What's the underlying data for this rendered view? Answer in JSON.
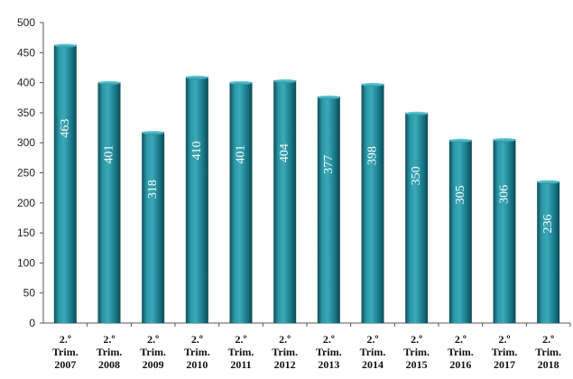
{
  "chart_data": {
    "type": "bar",
    "title": "",
    "xlabel": "",
    "ylabel": "",
    "ylim": [
      0,
      500
    ],
    "yticks": [
      0,
      50,
      100,
      150,
      200,
      250,
      300,
      350,
      400,
      450,
      500
    ],
    "grid": false,
    "legend": "none",
    "bar_color": "#1f8191",
    "categories": [
      [
        "2.º",
        "Trim.",
        "2007"
      ],
      [
        "2.º",
        "Trim.",
        "2008"
      ],
      [
        "2.º",
        "Trim.",
        "2009"
      ],
      [
        "2.º",
        "Trim.",
        "2010"
      ],
      [
        "2.º",
        "Trim.",
        "2011"
      ],
      [
        "2.º",
        "Trim.",
        "2012"
      ],
      [
        "2.º",
        "Trim.",
        "2013"
      ],
      [
        "2.º",
        "Trim.",
        "2014"
      ],
      [
        "2.º",
        "Trim.",
        "2015"
      ],
      [
        "2.º",
        "Trim.",
        "2016"
      ],
      [
        "2.º",
        "Trim.",
        "2017"
      ],
      [
        "2.º",
        "Trim.",
        "2018"
      ]
    ],
    "values": [
      463,
      401,
      318,
      410,
      401,
      404,
      377,
      398,
      350,
      305,
      306,
      236
    ]
  }
}
